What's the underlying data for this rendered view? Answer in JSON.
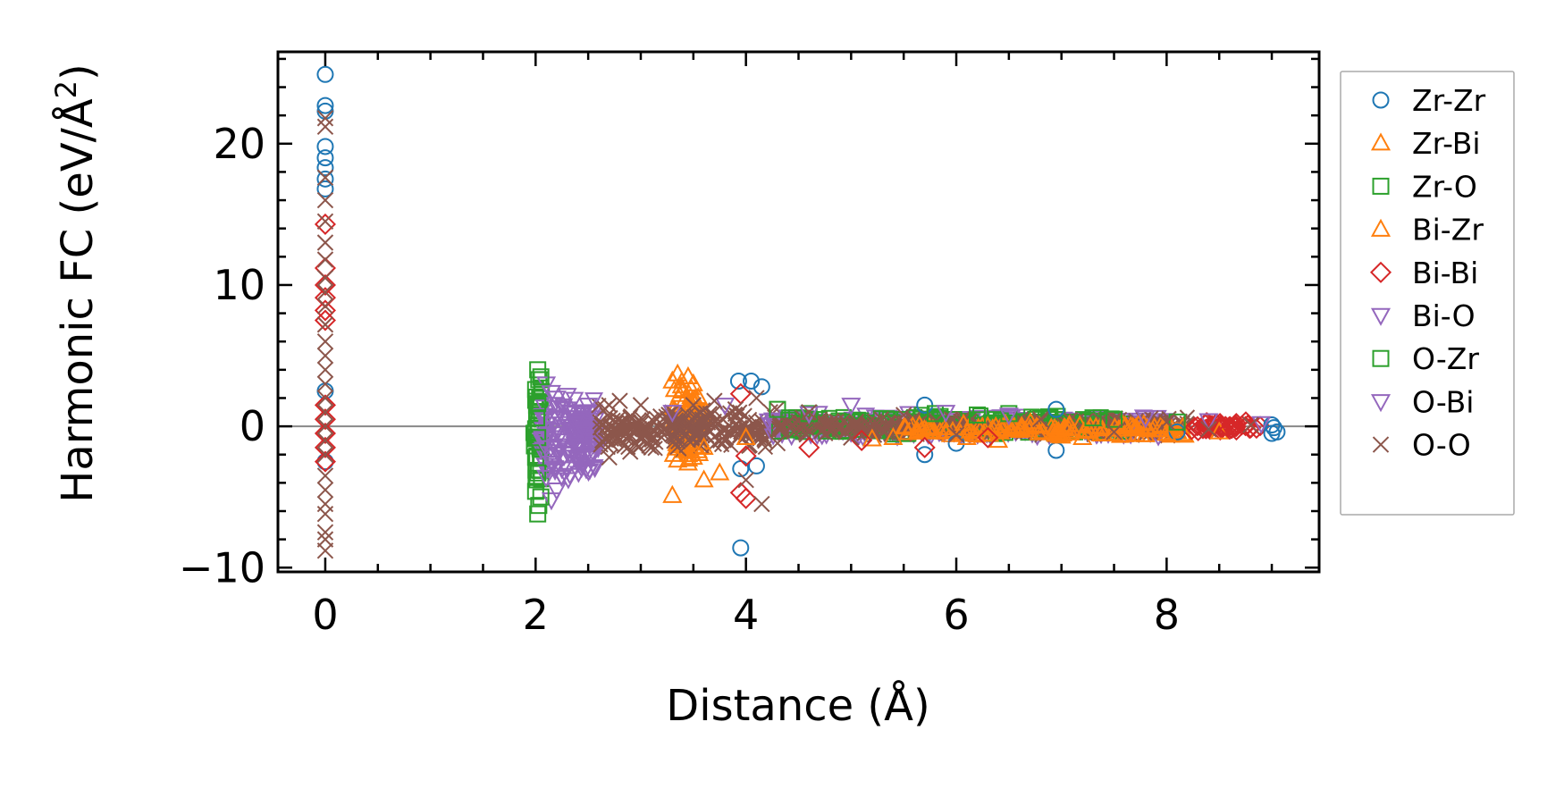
{
  "chart_data": {
    "type": "scatter",
    "title": "",
    "xlabel": "Distance (Å)",
    "ylabel_main": "Harmonic FC (eV/Å",
    "ylabel_sup": "2",
    "ylabel_close": ")",
    "xlim": [
      -0.45,
      9.45
    ],
    "ylim": [
      -10.3,
      26.5
    ],
    "xticks": [
      0,
      2,
      4,
      6,
      8
    ],
    "xtick_labels": [
      "0",
      "2",
      "4",
      "6",
      "8"
    ],
    "yticks": [
      -10,
      0,
      10,
      20
    ],
    "ytick_labels": [
      "−10",
      "0",
      "10",
      "20"
    ],
    "x_minor_step": 0.5,
    "y_minor_step": 2,
    "zero_line": true,
    "legend_position": "outside-right",
    "series": [
      {
        "name": "Zr-Zr",
        "marker": "circle",
        "color": "#1f77b4",
        "points": [
          [
            0,
            24.9
          ],
          [
            0,
            22.7
          ],
          [
            0,
            22.3
          ],
          [
            0,
            19.8
          ],
          [
            0,
            19.0
          ],
          [
            0,
            18.3
          ],
          [
            0,
            17.5
          ],
          [
            0,
            16.8
          ],
          [
            0,
            2.5
          ],
          [
            0,
            -2.5
          ],
          [
            3.93,
            3.2
          ],
          [
            4.05,
            3.2
          ],
          [
            4.15,
            2.8
          ],
          [
            3.95,
            -3.0
          ],
          [
            4.1,
            -2.8
          ],
          [
            3.95,
            -8.6
          ],
          [
            5.7,
            1.5
          ],
          [
            5.7,
            -2.0
          ],
          [
            6.0,
            -1.2
          ],
          [
            6.95,
            1.2
          ],
          [
            6.95,
            -1.7
          ],
          [
            8.1,
            -0.4
          ],
          [
            9.0,
            0.1
          ],
          [
            9.02,
            -0.1
          ],
          [
            9.05,
            -0.4
          ],
          [
            9.0,
            -0.5
          ]
        ]
      },
      {
        "name": "Zr-Bi",
        "marker": "triangle-up",
        "color": "#ff7f0e",
        "points": [
          [
            3.35,
            3.7
          ],
          [
            3.45,
            3.5
          ],
          [
            3.3,
            3.2
          ],
          [
            3.5,
            3.0
          ],
          [
            3.4,
            2.6
          ],
          [
            3.35,
            -2.4
          ],
          [
            3.45,
            -2.6
          ],
          [
            3.5,
            -2.2
          ],
          [
            3.3,
            -4.9
          ],
          [
            3.6,
            -3.8
          ],
          [
            3.75,
            -3.3
          ],
          [
            5.2,
            -0.9
          ],
          [
            6.4,
            -1.0
          ],
          [
            7.0,
            -0.7
          ],
          [
            7.6,
            -0.6
          ],
          [
            8.5,
            -0.4
          ]
        ]
      },
      {
        "name": "Zr-O",
        "marker": "square",
        "color": "#2ca02c",
        "points": [
          [
            2.02,
            4.0
          ],
          [
            2.03,
            3.3
          ],
          [
            2.0,
            2.6
          ],
          [
            2.02,
            1.6
          ],
          [
            2.01,
            0.6
          ],
          [
            2.02,
            -0.8
          ],
          [
            2.0,
            -2.2
          ],
          [
            2.02,
            -3.3
          ],
          [
            2.0,
            -4.6
          ],
          [
            2.03,
            -5.6
          ],
          [
            2.02,
            -6.2
          ],
          [
            4.6,
            0.9
          ],
          [
            5.8,
            0.9
          ],
          [
            6.5,
            0.9
          ],
          [
            7.5,
            0.5
          ]
        ]
      },
      {
        "name": "Bi-Zr",
        "marker": "triangle-up",
        "color": "#ff7f0e",
        "points": [
          [
            3.55,
            2.0
          ],
          [
            3.6,
            -1.5
          ],
          [
            4.0,
            -0.8
          ],
          [
            5.4,
            -0.8
          ],
          [
            6.1,
            -0.8
          ],
          [
            7.2,
            -0.8
          ],
          [
            7.8,
            -0.6
          ],
          [
            8.0,
            -0.5
          ]
        ]
      },
      {
        "name": "Bi-Bi",
        "marker": "diamond",
        "color": "#d62728",
        "points": [
          [
            0,
            14.3
          ],
          [
            0,
            11.2
          ],
          [
            0,
            10.0
          ],
          [
            0,
            9.1
          ],
          [
            0,
            8.2
          ],
          [
            0,
            7.5
          ],
          [
            0,
            1.5
          ],
          [
            0,
            0.5
          ],
          [
            0,
            -0.5
          ],
          [
            0,
            -1.5
          ],
          [
            0,
            -2.5
          ],
          [
            3.95,
            2.3
          ],
          [
            3.95,
            -4.7
          ],
          [
            4.0,
            -5.1
          ],
          [
            4.0,
            -2.1
          ],
          [
            4.6,
            -1.5
          ],
          [
            5.1,
            -1.0
          ],
          [
            5.7,
            -1.5
          ],
          [
            6.3,
            -0.8
          ],
          [
            8.3,
            -0.3
          ],
          [
            8.6,
            -0.2
          ],
          [
            8.8,
            -0.1
          ]
        ]
      },
      {
        "name": "Bi-O",
        "marker": "triangle-down",
        "color": "#9467bd",
        "points": [
          [
            2.1,
            3.0
          ],
          [
            2.15,
            2.4
          ],
          [
            2.2,
            2.0
          ],
          [
            2.1,
            -1.5
          ],
          [
            2.15,
            -2.6
          ],
          [
            2.1,
            -3.6
          ],
          [
            2.2,
            -4.5
          ],
          [
            2.15,
            -5.2
          ],
          [
            2.25,
            -3.0
          ],
          [
            2.5,
            1.5
          ],
          [
            2.4,
            -2.5
          ],
          [
            3.3,
            1.0
          ],
          [
            4.6,
            0.9
          ],
          [
            5.0,
            1.5
          ],
          [
            6.5,
            0.8
          ],
          [
            7.8,
            0.6
          ],
          [
            8.4,
            0.4
          ]
        ]
      },
      {
        "name": "O-Zr",
        "marker": "square",
        "color": "#2ca02c",
        "points": [
          [
            2.05,
            3.5
          ],
          [
            2.05,
            -5.0
          ],
          [
            4.3,
            1.2
          ],
          [
            6.2,
            0.8
          ],
          [
            7.3,
            0.6
          ],
          [
            8.1,
            0.3
          ]
        ]
      },
      {
        "name": "O-Bi",
        "marker": "triangle-down",
        "color": "#9467bd",
        "points": [
          [
            2.3,
            2.2
          ],
          [
            2.3,
            -3.0
          ],
          [
            2.45,
            -2.2
          ],
          [
            3.8,
            1.5
          ],
          [
            5.9,
            1.0
          ],
          [
            8.9,
            0.2
          ]
        ]
      },
      {
        "name": "O-O",
        "marker": "x",
        "color": "#8c564b",
        "points": [
          [
            0,
            21.8
          ],
          [
            0,
            21.2
          ],
          [
            0,
            17.6
          ],
          [
            0,
            16.0
          ],
          [
            0,
            14.5
          ],
          [
            0,
            13.0
          ],
          [
            0,
            11.8
          ],
          [
            0,
            10.5
          ],
          [
            0,
            9.5
          ],
          [
            0,
            8.5
          ],
          [
            0,
            7.2
          ],
          [
            0,
            6.0
          ],
          [
            0,
            5.0
          ],
          [
            0,
            4.0
          ],
          [
            0,
            3.0
          ],
          [
            0,
            2.0
          ],
          [
            0,
            1.0
          ],
          [
            0,
            0.0
          ],
          [
            0,
            -1.0
          ],
          [
            0,
            -2.0
          ],
          [
            0,
            -3.5
          ],
          [
            0,
            -4.5
          ],
          [
            0,
            -5.5
          ],
          [
            0,
            -6.2
          ],
          [
            0,
            -7.5
          ],
          [
            0,
            -8.0
          ],
          [
            0,
            -8.8
          ],
          [
            2.7,
            1.5
          ],
          [
            2.7,
            -2.2
          ],
          [
            2.8,
            1.8
          ],
          [
            2.9,
            -1.8
          ],
          [
            3.0,
            1.5
          ],
          [
            3.1,
            -1.5
          ],
          [
            3.5,
            1.5
          ],
          [
            3.7,
            1.8
          ],
          [
            3.9,
            1.2
          ],
          [
            4.0,
            -3.8
          ],
          [
            4.15,
            -5.5
          ],
          [
            4.1,
            2.0
          ],
          [
            4.3,
            -1.2
          ],
          [
            4.6,
            1.0
          ],
          [
            5.0,
            -0.8
          ],
          [
            5.5,
            0.8
          ],
          [
            6.0,
            -0.6
          ],
          [
            6.8,
            0.5
          ],
          [
            7.5,
            -0.4
          ],
          [
            8.0,
            0.3
          ],
          [
            8.4,
            -0.2
          ],
          [
            8.8,
            0.1
          ]
        ]
      }
    ],
    "dense_bands": [
      {
        "series": "Zr-O",
        "x0": 1.98,
        "x1": 2.06,
        "y0": -4.5,
        "y1": 3.5
      },
      {
        "series": "Bi-O",
        "x0": 2.05,
        "x1": 2.6,
        "y0": -4.0,
        "y1": 2.2
      },
      {
        "series": "O-O",
        "x0": 2.6,
        "x1": 3.1,
        "y0": -2.0,
        "y1": 1.6
      },
      {
        "series": "Zr-Bi",
        "x0": 3.3,
        "x1": 3.6,
        "y0": -3.0,
        "y1": 3.5
      },
      {
        "series": "O-O",
        "x0": 3.1,
        "x1": 4.3,
        "y0": -1.8,
        "y1": 1.4
      },
      {
        "series": "Bi-O",
        "x0": 4.2,
        "x1": 8.0,
        "y0": -0.9,
        "y1": 1.0
      },
      {
        "series": "Zr-O",
        "x0": 4.3,
        "x1": 7.6,
        "y0": -0.7,
        "y1": 0.9
      },
      {
        "series": "O-O",
        "x0": 4.3,
        "x1": 8.2,
        "y0": -0.8,
        "y1": 0.7
      },
      {
        "series": "Bi-Zr",
        "x0": 5.5,
        "x1": 8.2,
        "y0": -0.8,
        "y1": 0.3
      },
      {
        "series": "Bi-Bi",
        "x0": 8.2,
        "x1": 8.9,
        "y0": -0.4,
        "y1": 0.4
      }
    ]
  }
}
